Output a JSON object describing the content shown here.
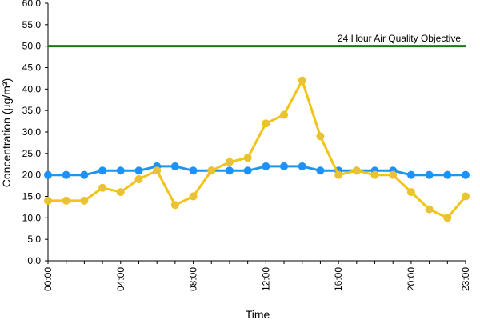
{
  "chart_data": {
    "type": "line",
    "title": "",
    "xlabel": "Time",
    "ylabel": "Concentration (µg/m³)",
    "ylim": [
      0,
      60
    ],
    "yticks": [
      "0.0",
      "5.0",
      "10.0",
      "15.0",
      "20.0",
      "25.0",
      "30.0",
      "35.0",
      "40.0",
      "45.0",
      "50.0",
      "55.0",
      "60.0"
    ],
    "x": [
      "00:00",
      "01:00",
      "02:00",
      "03:00",
      "04:00",
      "05:00",
      "06:00",
      "07:00",
      "08:00",
      "09:00",
      "10:00",
      "11:00",
      "12:00",
      "13:00",
      "14:00",
      "15:00",
      "16:00",
      "17:00",
      "18:00",
      "19:00",
      "20:00",
      "21:00",
      "22:00",
      "23:00"
    ],
    "xticks": [
      "00:00",
      "04:00",
      "08:00",
      "12:00",
      "16:00",
      "20:00",
      "23:00"
    ],
    "grid": false,
    "legend": false,
    "series": [
      {
        "color": "#2196e8",
        "marker_color": "#1e90ff",
        "values": [
          20,
          20,
          20,
          21,
          21,
          21,
          22,
          22,
          21,
          21,
          21,
          21,
          22,
          22,
          22,
          21,
          21,
          21,
          21,
          21,
          20,
          20,
          20,
          20
        ]
      },
      {
        "color": "#f2c318",
        "marker_color": "#e8c23a",
        "values": [
          14,
          14,
          14,
          17,
          16,
          19,
          21,
          13,
          15,
          21,
          23,
          24,
          32,
          34,
          42,
          29,
          20,
          21,
          20,
          20,
          16,
          12,
          10,
          15
        ]
      }
    ],
    "reference_line": {
      "value": 50,
      "label": "24 Hour Air Quality Objective",
      "color": "#1a7a1a"
    }
  }
}
